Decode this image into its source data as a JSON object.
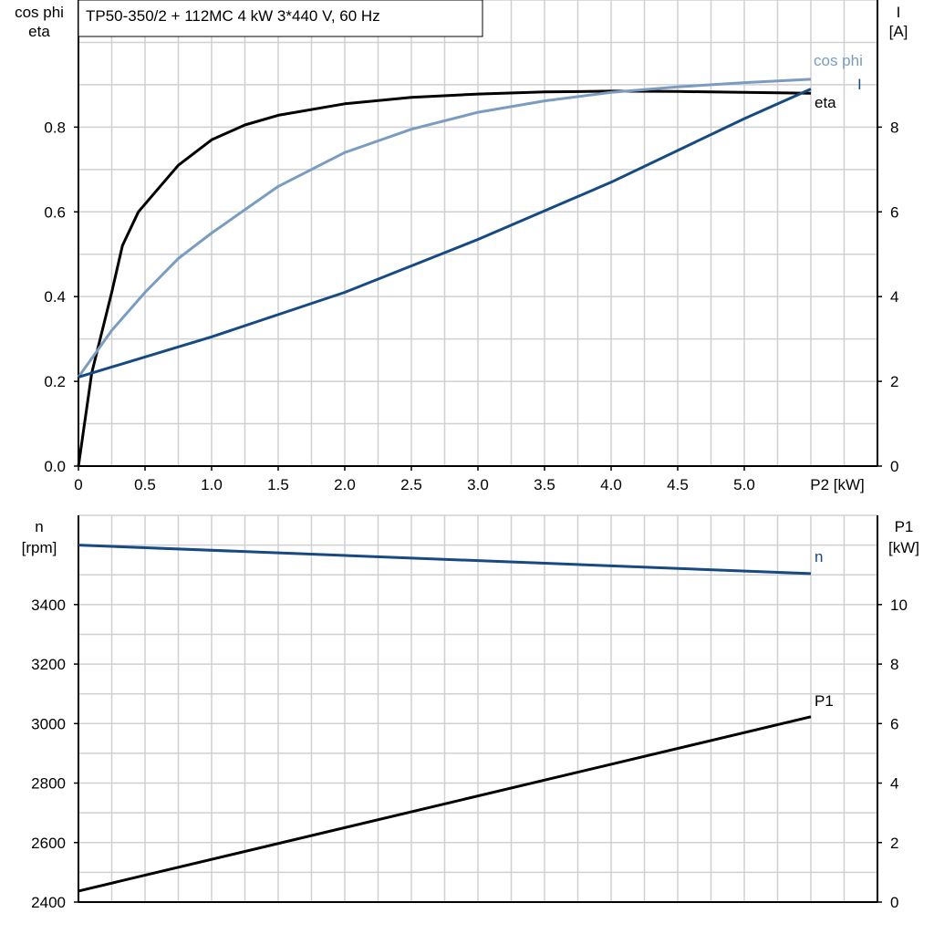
{
  "chart_data": [
    {
      "type": "line",
      "title": "TP50-350/2 + 112MC   4 kW   3*440 V, 60 Hz",
      "xlabel": "P2 [kW]",
      "ylabel": [
        "cos phi",
        "eta"
      ],
      "ylabel_right": [
        "I",
        "[A]"
      ],
      "xlim": [
        0,
        6
      ],
      "ylim": [
        0,
        1.1
      ],
      "ylim_right": [
        0,
        11
      ],
      "grid": true,
      "x_ticks": [
        "0",
        "0.5",
        "1.0",
        "1.5",
        "2.0",
        "2.5",
        "3.0",
        "3.5",
        "4.0",
        "4.5",
        "5.0"
      ],
      "y_ticks": [
        "0.0",
        "0.2",
        "0.4",
        "0.6",
        "0.8"
      ],
      "y_ticks_right": [
        "0",
        "2",
        "4",
        "6",
        "8"
      ],
      "series": [
        {
          "name": "eta",
          "axis": "left",
          "color": "#000000",
          "x": [
            0,
            0.1,
            0.25,
            0.33,
            0.45,
            0.6,
            0.75,
            1.0,
            1.25,
            1.5,
            2.0,
            2.5,
            3.0,
            3.5,
            4.0,
            4.5,
            5.0,
            5.5
          ],
          "y": [
            0,
            0.22,
            0.41,
            0.52,
            0.6,
            0.655,
            0.71,
            0.77,
            0.805,
            0.828,
            0.855,
            0.87,
            0.878,
            0.883,
            0.885,
            0.884,
            0.882,
            0.88
          ]
        },
        {
          "name": "cos phi",
          "axis": "left",
          "color": "#7a9cc0",
          "x": [
            0,
            0.25,
            0.5,
            0.75,
            1.0,
            1.5,
            2.0,
            2.5,
            3.0,
            3.5,
            4.0,
            4.5,
            5.0,
            5.5
          ],
          "y": [
            0.21,
            0.32,
            0.41,
            0.49,
            0.55,
            0.66,
            0.74,
            0.795,
            0.835,
            0.862,
            0.882,
            0.895,
            0.905,
            0.913
          ]
        },
        {
          "name": "I",
          "axis": "right",
          "color": "#164a80",
          "x": [
            0,
            1,
            2,
            3,
            4,
            5,
            5.5
          ],
          "y": [
            2.1,
            3.05,
            4.1,
            5.35,
            6.7,
            8.2,
            8.9
          ]
        }
      ]
    },
    {
      "type": "line",
      "xlim": [
        0,
        6
      ],
      "ylabel": [
        "n",
        "[rpm]"
      ],
      "ylabel_right": [
        "P1",
        "[kW]"
      ],
      "ylim": [
        2400,
        3700
      ],
      "ylim_right": [
        0,
        13
      ],
      "grid": true,
      "y_ticks": [
        "2400",
        "2600",
        "2800",
        "3000",
        "3200",
        "3400"
      ],
      "y_ticks_right": [
        "0",
        "2",
        "4",
        "6",
        "8",
        "10"
      ],
      "series": [
        {
          "name": "n",
          "axis": "left",
          "color": "#164a80",
          "x": [
            0,
            5.5
          ],
          "y": [
            3600,
            3504
          ]
        },
        {
          "name": "P1",
          "axis": "right",
          "color": "#000000",
          "x": [
            0,
            5.5
          ],
          "y": [
            0.37,
            6.23
          ]
        }
      ]
    }
  ]
}
